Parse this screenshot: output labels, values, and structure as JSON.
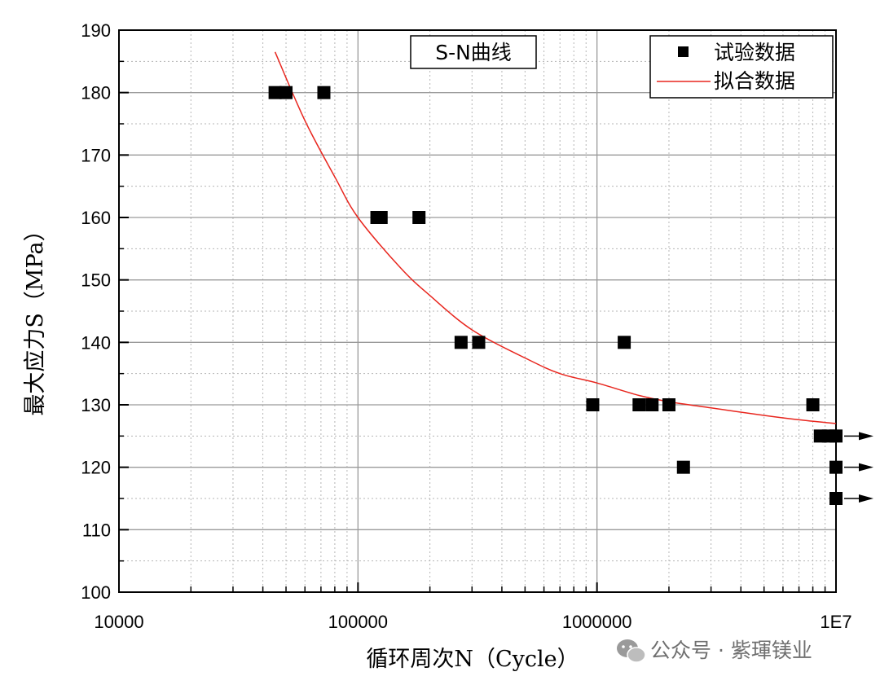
{
  "chart_data": {
    "type": "scatter",
    "title": "S-N曲线",
    "xlabel": "循环周次N（Cycle）",
    "ylabel": "最大应力S（MPa）",
    "x_scale": "log",
    "xlim": [
      10000,
      10000000
    ],
    "ylim": [
      100,
      190
    ],
    "grid": true,
    "legend_position": "top-right",
    "x_ticks": [
      {
        "value": 10000,
        "label": "10000"
      },
      {
        "value": 100000,
        "label": "100000"
      },
      {
        "value": 1000000,
        "label": "1000000"
      },
      {
        "value": 10000000,
        "label": "1E7"
      }
    ],
    "y_ticks": [
      {
        "value": 100,
        "label": "100"
      },
      {
        "value": 110,
        "label": "110"
      },
      {
        "value": 120,
        "label": "120"
      },
      {
        "value": 130,
        "label": "130"
      },
      {
        "value": 140,
        "label": "140"
      },
      {
        "value": 150,
        "label": "150"
      },
      {
        "value": 160,
        "label": "160"
      },
      {
        "value": 170,
        "label": "170"
      },
      {
        "value": 180,
        "label": "180"
      },
      {
        "value": 190,
        "label": "190"
      }
    ],
    "series": [
      {
        "name": "试验数据",
        "type": "scatter",
        "color": "#000000",
        "points": [
          {
            "x": 45000,
            "y": 180
          },
          {
            "x": 50000,
            "y": 180
          },
          {
            "x": 72000,
            "y": 180
          },
          {
            "x": 120000,
            "y": 160
          },
          {
            "x": 125000,
            "y": 160
          },
          {
            "x": 180000,
            "y": 160
          },
          {
            "x": 270000,
            "y": 140
          },
          {
            "x": 320000,
            "y": 140
          },
          {
            "x": 960000,
            "y": 130
          },
          {
            "x": 1300000,
            "y": 140
          },
          {
            "x": 1500000,
            "y": 130
          },
          {
            "x": 1700000,
            "y": 130
          },
          {
            "x": 2000000,
            "y": 130
          },
          {
            "x": 2300000,
            "y": 120
          },
          {
            "x": 8000000,
            "y": 130
          },
          {
            "x": 8600000,
            "y": 125
          },
          {
            "x": 9300000,
            "y": 125
          },
          {
            "x": 10000000,
            "y": 125
          },
          {
            "x": 10000000,
            "y": 120
          },
          {
            "x": 10000000,
            "y": 115
          }
        ]
      },
      {
        "name": "拟合数据",
        "type": "line",
        "color": "#e8261e",
        "points": [
          {
            "x": 45000,
            "y": 186.5
          },
          {
            "x": 60000,
            "y": 175.5
          },
          {
            "x": 80000,
            "y": 166.5
          },
          {
            "x": 100000,
            "y": 160.0
          },
          {
            "x": 150000,
            "y": 152.0
          },
          {
            "x": 200000,
            "y": 147.5
          },
          {
            "x": 300000,
            "y": 142.0
          },
          {
            "x": 500000,
            "y": 137.5
          },
          {
            "x": 700000,
            "y": 135.0
          },
          {
            "x": 1000000,
            "y": 133.5
          },
          {
            "x": 1500000,
            "y": 131.5
          },
          {
            "x": 2000000,
            "y": 130.5
          },
          {
            "x": 3000000,
            "y": 129.5
          },
          {
            "x": 5000000,
            "y": 128.3
          },
          {
            "x": 7000000,
            "y": 127.6
          },
          {
            "x": 10000000,
            "y": 127.0
          }
        ]
      }
    ],
    "runout_arrows": [
      {
        "x": 10000000,
        "y": 125
      },
      {
        "x": 10000000,
        "y": 120
      },
      {
        "x": 10000000,
        "y": 115
      }
    ]
  },
  "watermark": {
    "icon": "wechat-icon",
    "text": "公众号 · 紫琿镁业"
  }
}
